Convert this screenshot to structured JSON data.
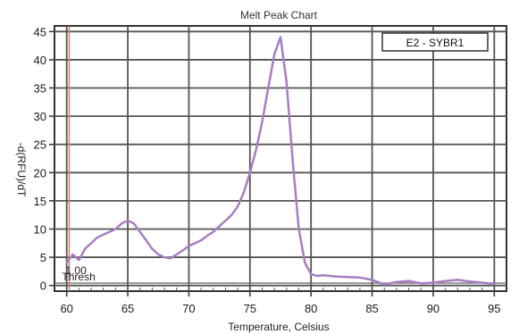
{
  "chart_data": {
    "type": "line",
    "title": "Melt Peak Chart",
    "xlabel": "Temperature, Celsius",
    "ylabel": "-d(RFU)/dT",
    "xlim": [
      59,
      96
    ],
    "ylim": [
      -1,
      46
    ],
    "x_ticks": [
      60,
      65,
      70,
      75,
      80,
      85,
      90,
      95
    ],
    "y_ticks": [
      0,
      5,
      10,
      15,
      20,
      25,
      30,
      35,
      40,
      45
    ],
    "grid": true,
    "legend_position": "top-right",
    "threshold": {
      "x": 60.2,
      "label": "1.00",
      "sublabel": "Thresh"
    },
    "series": [
      {
        "name": "E2 - SYBR1",
        "color": "#a77fc0",
        "x": [
          60.0,
          60.5,
          61.0,
          61.5,
          62.0,
          62.5,
          63.0,
          63.5,
          64.0,
          64.5,
          65.0,
          65.5,
          66.0,
          66.5,
          67.0,
          67.5,
          68.0,
          68.5,
          69.0,
          69.5,
          70.0,
          70.5,
          71.0,
          71.5,
          72.0,
          72.5,
          73.0,
          73.5,
          74.0,
          74.5,
          75.0,
          75.5,
          76.0,
          76.5,
          77.0,
          77.5,
          78.0,
          78.5,
          79.0,
          79.5,
          80.0,
          80.5,
          81.0,
          82.0,
          83.0,
          84.0,
          85.0,
          86.0,
          87.0,
          88.0,
          89.0,
          90.0,
          91.0,
          92.0,
          93.0,
          94.0,
          95.0
        ],
        "y": [
          4.0,
          5.5,
          4.5,
          6.5,
          7.5,
          8.5,
          9.0,
          9.5,
          10.0,
          11.0,
          11.5,
          11.0,
          9.5,
          8.0,
          6.5,
          5.5,
          5.0,
          4.8,
          5.5,
          6.2,
          7.0,
          7.5,
          8.0,
          8.8,
          9.5,
          10.5,
          11.5,
          12.5,
          14.0,
          16.5,
          20.0,
          24.0,
          29.0,
          35.0,
          41.0,
          44.0,
          36.0,
          22.0,
          10.0,
          4.0,
          2.0,
          1.7,
          1.8,
          1.6,
          1.5,
          1.4,
          1.0,
          0.2,
          0.6,
          0.8,
          0.4,
          0.5,
          0.8,
          1.0,
          0.7,
          0.5,
          0.3
        ]
      }
    ]
  }
}
